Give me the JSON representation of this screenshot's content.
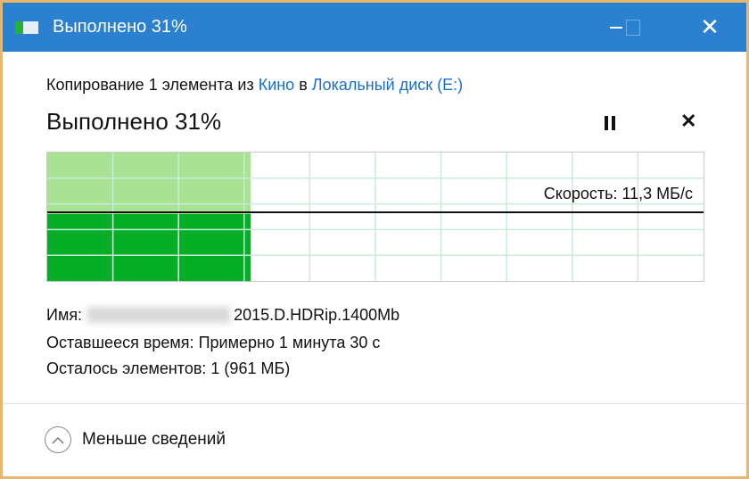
{
  "window": {
    "title": "Выполнено 31%",
    "icon": "file-copy-icon",
    "border_color": "#e9b76c",
    "titlebar_color": "#2b80d0"
  },
  "description": {
    "prefix": "Копирование 1 элемента из ",
    "source": "Кино",
    "middle": " в ",
    "destination": "Локальный диск (E:)"
  },
  "progress": {
    "heading": "Выполнено 31%",
    "percent": 31,
    "speed_label": "Скорость: 11,3 МБ/с",
    "fill_color": "#06ad27",
    "history_color": "#a8e292",
    "grid_color": "#c8ecd5"
  },
  "details": {
    "name_label": "Имя:",
    "name_visible": "2015.D.HDRip.1400Mb",
    "time_label": "Оставшееся время:",
    "time_value": "Примерно 1 минута 30 с",
    "items_label": "Осталось элементов:",
    "items_value": "1 (961 МБ)"
  },
  "footer": {
    "toggle_label": "Меньше сведений"
  }
}
